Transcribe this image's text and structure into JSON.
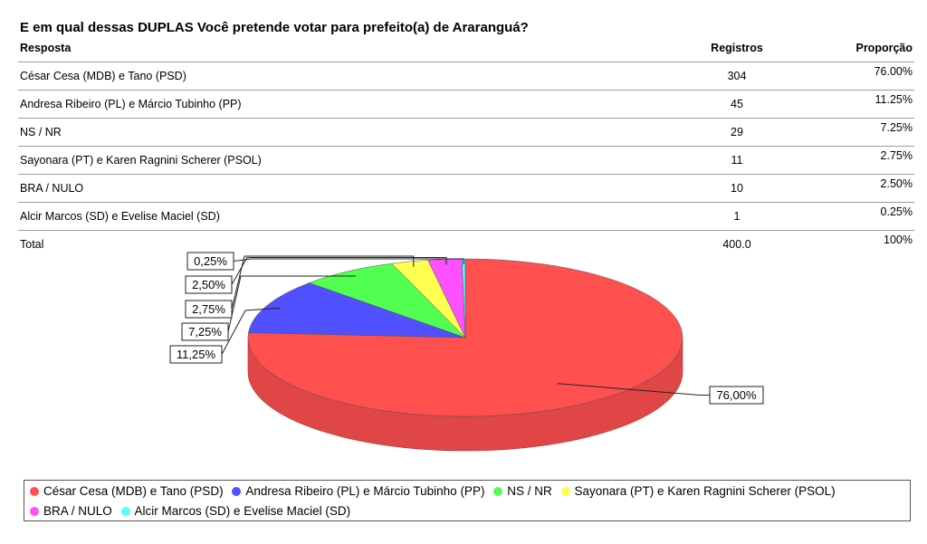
{
  "title": "E em qual dessas DUPLAS Você pretende votar para prefeito(a) de Araranguá?",
  "table": {
    "headers": {
      "answer": "Resposta",
      "count": "Registros",
      "share": "Proporção"
    },
    "rows": [
      {
        "answer": "César Cesa (MDB) e Tano (PSD)",
        "count": "304",
        "share": "76.00%"
      },
      {
        "answer": "Andresa Ribeiro (PL) e Márcio Tubinho (PP)",
        "count": "45",
        "share": "11.25%"
      },
      {
        "answer": "NS / NR",
        "count": "29",
        "share": "7.25%"
      },
      {
        "answer": "Sayonara (PT) e Karen Ragnini Scherer (PSOL)",
        "count": "11",
        "share": "2.75%"
      },
      {
        "answer": "BRA / NULO",
        "count": "10",
        "share": "2.50%"
      },
      {
        "answer": "Alcir Marcos (SD) e Evelise Maciel (SD)",
        "count": "1",
        "share": "0.25%"
      }
    ],
    "total": {
      "answer": "Total",
      "count": "400.0",
      "share": "100%"
    }
  },
  "chart_data": {
    "type": "pie",
    "title": "",
    "categories": [
      "César Cesa (MDB) e Tano (PSD)",
      "Andresa Ribeiro (PL) e Márcio Tubinho (PP)",
      "NS / NR",
      "Sayonara (PT) e Karen Ragnini Scherer (PSOL)",
      "BRA / NULO",
      "Alcir Marcos (SD) e Evelise Maciel (SD)"
    ],
    "values": [
      76.0,
      11.25,
      7.25,
      2.75,
      2.5,
      0.25
    ],
    "labels": [
      "76,00%",
      "11,25%",
      "7,25%",
      "2,75%",
      "2,50%",
      "0,25%"
    ],
    "colors": [
      "#ff5050",
      "#5050ff",
      "#50ff50",
      "#ffff50",
      "#ff50ff",
      "#50ffff"
    ],
    "style": "3d",
    "legend_position": "bottom"
  }
}
